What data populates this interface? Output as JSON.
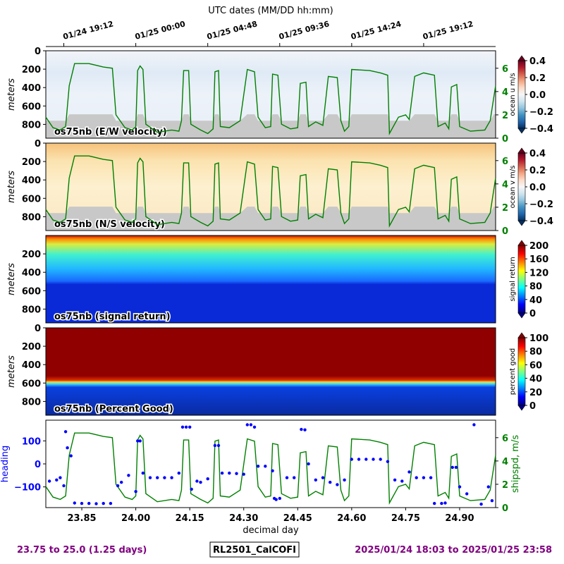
{
  "top_axis": {
    "title": "UTC dates (MM/DD hh:mm)",
    "ticks": [
      {
        "day": 23.8,
        "label": "01/24 19:12"
      },
      {
        "day": 24.0,
        "label": "01/25 00:00"
      },
      {
        "day": 24.2,
        "label": "01/25 04:48"
      },
      {
        "day": 24.4,
        "label": "01/25 09:36"
      },
      {
        "day": 24.6,
        "label": "01/25 14:24"
      },
      {
        "day": 24.8,
        "label": "01/25 19:12"
      }
    ]
  },
  "footer": {
    "left": "23.75 to 25.0 (1.25 days)",
    "center": "RL2501_CalCOFI",
    "right": "2025/01/24 18:03 to 2025/01/25 23:58",
    "left_color": "#800080",
    "right_color": "#800080"
  },
  "chart_data": [
    {
      "type": "heatmap",
      "name": "os75nb (E/W velocity)",
      "ylabel": "meters",
      "ylim": [
        950,
        0
      ],
      "yticks": [
        "0",
        "200",
        "400",
        "600",
        "800"
      ],
      "colorbar": {
        "label": "ocean u m/s",
        "range": [
          -0.4,
          0.4
        ],
        "colormap": "RdBu_r",
        "ticks": [
          "0.4",
          "0.2",
          "0.0",
          "−0.2",
          "−0.4"
        ]
      },
      "overlay": {
        "label": "shipspd",
        "color": "#008000",
        "ticks": [
          "6",
          "4",
          "2",
          "0"
        ],
        "range": [
          0,
          7.5
        ]
      }
    },
    {
      "type": "heatmap",
      "name": "os75nb (N/S velocity)",
      "ylabel": "meters",
      "ylim": [
        950,
        0
      ],
      "yticks": [
        "0",
        "200",
        "400",
        "600",
        "800"
      ],
      "colorbar": {
        "label": "ocean v m/s",
        "range": [
          -0.4,
          0.4
        ],
        "colormap": "RdBu_r",
        "ticks": [
          "0.4",
          "0.2",
          "0.0",
          "−0.2",
          "−0.4"
        ]
      },
      "overlay": {
        "label": "shipspd",
        "color": "#008000",
        "ticks": [
          "6",
          "4",
          "2",
          "0"
        ],
        "range": [
          0,
          7.5
        ]
      }
    },
    {
      "type": "heatmap",
      "name": "os75nb (signal return)",
      "ylabel": "meters",
      "ylim": [
        950,
        0
      ],
      "yticks": [
        "200",
        "400",
        "600",
        "800"
      ],
      "colorbar": {
        "label": "signal return",
        "range": [
          0,
          200
        ],
        "colormap": "jet",
        "ticks": [
          "200",
          "160",
          "120",
          "80",
          "40",
          "0"
        ]
      }
    },
    {
      "type": "heatmap",
      "name": "os75nb (Percent Good)",
      "ylabel": "meters",
      "ylim": [
        950,
        0
      ],
      "yticks": [
        "0",
        "200",
        "400",
        "600",
        "800"
      ],
      "colorbar": {
        "label": "percent good",
        "range": [
          0,
          100
        ],
        "colormap": "jet",
        "ticks": [
          "100",
          "80",
          "60",
          "40",
          "20",
          "0"
        ]
      }
    },
    {
      "type": "scatter",
      "xlabel": "decimal day",
      "xlim": [
        23.75,
        25.0
      ],
      "xticks": [
        "23.85",
        "24.00",
        "24.15",
        "24.30",
        "24.45",
        "24.60",
        "24.75",
        "24.90"
      ],
      "ylabel": "heading",
      "ylim": [
        -190,
        190
      ],
      "yticks": [
        "100",
        "0",
        "−100"
      ],
      "heading_color": "#0000ff",
      "y2label": "shipspd, m/s",
      "y2ticks": [
        "6",
        "4",
        "2",
        "0"
      ],
      "y2_color": "#008000",
      "y2lim": [
        0,
        7.5
      ],
      "shipspd": [
        [
          23.75,
          1.8
        ],
        [
          23.77,
          0.9
        ],
        [
          23.79,
          0.7
        ],
        [
          23.805,
          1.0
        ],
        [
          23.815,
          4.5
        ],
        [
          23.83,
          6.4
        ],
        [
          23.87,
          6.4
        ],
        [
          23.91,
          6.1
        ],
        [
          23.935,
          6.0
        ],
        [
          23.945,
          2.0
        ],
        [
          23.97,
          0.9
        ],
        [
          23.99,
          0.7
        ],
        [
          24.0,
          1.0
        ],
        [
          24.005,
          5.8
        ],
        [
          24.012,
          6.2
        ],
        [
          24.02,
          5.9
        ],
        [
          24.028,
          1.2
        ],
        [
          24.06,
          0.5
        ],
        [
          24.1,
          0.7
        ],
        [
          24.12,
          0.6
        ],
        [
          24.127,
          1.5
        ],
        [
          24.133,
          5.8
        ],
        [
          24.147,
          5.8
        ],
        [
          24.153,
          1.2
        ],
        [
          24.18,
          0.7
        ],
        [
          24.2,
          0.4
        ],
        [
          24.215,
          0.8
        ],
        [
          24.22,
          5.7
        ],
        [
          24.23,
          5.8
        ],
        [
          24.235,
          1.0
        ],
        [
          24.26,
          0.9
        ],
        [
          24.29,
          1.5
        ],
        [
          24.31,
          5.9
        ],
        [
          24.33,
          5.7
        ],
        [
          24.34,
          1.8
        ],
        [
          24.36,
          0.9
        ],
        [
          24.375,
          1.0
        ],
        [
          24.38,
          5.5
        ],
        [
          24.395,
          5.4
        ],
        [
          24.405,
          1.2
        ],
        [
          24.43,
          0.8
        ],
        [
          24.45,
          0.9
        ],
        [
          24.457,
          4.7
        ],
        [
          24.473,
          4.8
        ],
        [
          24.48,
          1.0
        ],
        [
          24.5,
          1.4
        ],
        [
          24.52,
          1.1
        ],
        [
          24.535,
          5.3
        ],
        [
          24.56,
          5.2
        ],
        [
          24.57,
          1.5
        ],
        [
          24.58,
          0.6
        ],
        [
          24.592,
          1.0
        ],
        [
          24.6,
          5.9
        ],
        [
          24.65,
          5.8
        ],
        [
          24.68,
          5.6
        ],
        [
          24.7,
          5.4
        ],
        [
          24.705,
          0.4
        ],
        [
          24.73,
          1.8
        ],
        [
          24.75,
          2.0
        ],
        [
          24.76,
          1.6
        ],
        [
          24.775,
          5.3
        ],
        [
          24.8,
          5.6
        ],
        [
          24.83,
          5.4
        ],
        [
          24.84,
          1.0
        ],
        [
          24.86,
          1.3
        ],
        [
          24.87,
          0.8
        ],
        [
          24.877,
          4.4
        ],
        [
          24.892,
          4.6
        ],
        [
          24.9,
          1.0
        ],
        [
          24.93,
          0.6
        ],
        [
          24.97,
          0.7
        ],
        [
          24.985,
          1.5
        ],
        [
          24.995,
          3.5
        ],
        [
          25.0,
          4.5
        ]
      ],
      "heading": [
        [
          23.76,
          -75
        ],
        [
          23.78,
          -70
        ],
        [
          23.79,
          -60
        ],
        [
          23.8,
          -95
        ],
        [
          23.805,
          140
        ],
        [
          23.81,
          70
        ],
        [
          23.82,
          35
        ],
        [
          23.83,
          -170
        ],
        [
          23.85,
          -172
        ],
        [
          23.87,
          -172
        ],
        [
          23.89,
          -173
        ],
        [
          23.91,
          -172
        ],
        [
          23.93,
          -172
        ],
        [
          23.95,
          -95
        ],
        [
          23.96,
          -80
        ],
        [
          23.98,
          -50
        ],
        [
          24.0,
          -120
        ],
        [
          24.005,
          100
        ],
        [
          24.012,
          100
        ],
        [
          24.02,
          -40
        ],
        [
          24.04,
          -60
        ],
        [
          24.06,
          -60
        ],
        [
          24.08,
          -60
        ],
        [
          24.1,
          -60
        ],
        [
          24.12,
          -40
        ],
        [
          24.13,
          160
        ],
        [
          24.14,
          160
        ],
        [
          24.15,
          160
        ],
        [
          24.155,
          -110
        ],
        [
          24.17,
          -75
        ],
        [
          24.18,
          -80
        ],
        [
          24.2,
          -65
        ],
        [
          24.22,
          80
        ],
        [
          24.23,
          80
        ],
        [
          24.24,
          -40
        ],
        [
          24.26,
          -40
        ],
        [
          24.28,
          -42
        ],
        [
          24.3,
          -45
        ],
        [
          24.31,
          170
        ],
        [
          24.32,
          170
        ],
        [
          24.33,
          160
        ],
        [
          24.34,
          -10
        ],
        [
          24.36,
          -10
        ],
        [
          24.38,
          -30
        ],
        [
          24.385,
          -150
        ],
        [
          24.39,
          -155
        ],
        [
          24.4,
          -150
        ],
        [
          24.42,
          -60
        ],
        [
          24.44,
          -60
        ],
        [
          24.46,
          150
        ],
        [
          24.47,
          148
        ],
        [
          24.48,
          0
        ],
        [
          24.5,
          -70
        ],
        [
          24.52,
          -60
        ],
        [
          24.54,
          -80
        ],
        [
          24.56,
          -90
        ],
        [
          24.58,
          -70
        ],
        [
          24.6,
          20
        ],
        [
          24.62,
          20
        ],
        [
          24.64,
          20
        ],
        [
          24.66,
          20
        ],
        [
          24.68,
          20
        ],
        [
          24.7,
          10
        ],
        [
          24.72,
          -70
        ],
        [
          24.74,
          -75
        ],
        [
          24.76,
          -35
        ],
        [
          24.78,
          -60
        ],
        [
          24.8,
          -60
        ],
        [
          24.82,
          -60
        ],
        [
          24.83,
          -172
        ],
        [
          24.85,
          -172
        ],
        [
          24.86,
          -170
        ],
        [
          24.88,
          -15
        ],
        [
          24.89,
          -15
        ],
        [
          24.9,
          -100
        ],
        [
          24.92,
          -130
        ],
        [
          24.94,
          170
        ],
        [
          24.96,
          -175
        ],
        [
          24.98,
          -100
        ],
        [
          24.99,
          -160
        ]
      ]
    }
  ]
}
